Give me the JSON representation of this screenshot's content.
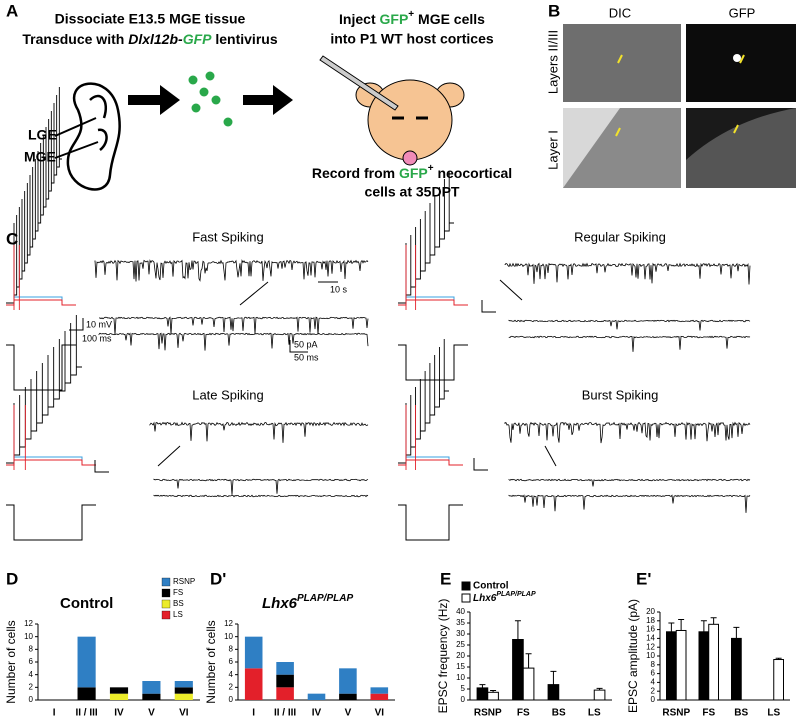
{
  "panel_a": {
    "label": "A",
    "line1": "Dissociate E13.5 MGE tissue",
    "line2": [
      "Transduce with",
      "Dlxl12b",
      "-",
      "GFP",
      "lentivirus"
    ],
    "lge": "LGE",
    "mge": "MGE",
    "inject": [
      "Inject",
      "GFP",
      "+",
      "MGE cells"
    ],
    "host": "into P1 WT host cortices",
    "record": [
      "Record from",
      "GFP",
      "+",
      "neocortical"
    ],
    "record2": "cells at 35DPT"
  },
  "panel_b": {
    "label": "B",
    "dic": "DIC",
    "gfp": "GFP",
    "row1": "Layers II/III",
    "row2": "Layer I"
  },
  "panel_c": {
    "label": "C",
    "fast": "Fast Spiking",
    "regular": "Regular Spiking",
    "late": "Late Spiking",
    "burst": "Burst Spiking",
    "scale_mv": "10 mV",
    "scale_ms": "100 ms",
    "scale_s": "10 s",
    "scale_pa": "50 pA",
    "scale_ms2": "50 ms"
  },
  "chart_data": [
    {
      "type": "stacked_bar",
      "panel": "D",
      "title": "Control",
      "ylabel": "Number of cells",
      "categories": [
        "I",
        "II / III",
        "IV",
        "V",
        "VI"
      ],
      "series": [
        {
          "name": "RSNP",
          "color": "#2f7fc4",
          "values": [
            0,
            8,
            0,
            2,
            1
          ]
        },
        {
          "name": "FS",
          "color": "#000000",
          "values": [
            0,
            2,
            1,
            1,
            1
          ]
        },
        {
          "name": "BS",
          "color": "#ecec2a",
          "values": [
            0,
            0,
            1,
            0,
            1
          ]
        },
        {
          "name": "LS",
          "color": "#e3202a",
          "values": [
            0,
            0,
            0,
            0,
            0
          ]
        }
      ],
      "ylim": [
        0,
        12
      ],
      "yticks": [
        0,
        2,
        4,
        6,
        8,
        10,
        12
      ],
      "legend": true
    },
    {
      "type": "stacked_bar",
      "panel": "D'",
      "title": {
        "text": "Lhx6",
        "superscript": "PLAP/PLAP"
      },
      "ylabel": "Number of cells",
      "categories": [
        "I",
        "II / III",
        "IV",
        "V",
        "VI"
      ],
      "series": [
        {
          "name": "RSNP",
          "color": "#2f7fc4",
          "values": [
            5,
            2,
            1,
            4,
            1
          ]
        },
        {
          "name": "FS",
          "color": "#000000",
          "values": [
            0,
            2,
            0,
            1,
            0
          ]
        },
        {
          "name": "BS",
          "color": "#ecec2a",
          "values": [
            0,
            0,
            0,
            0,
            0
          ]
        },
        {
          "name": "LS",
          "color": "#e3202a",
          "values": [
            5,
            2,
            0,
            0,
            1
          ]
        }
      ],
      "ylim": [
        0,
        12
      ],
      "yticks": [
        0,
        2,
        4,
        6,
        8,
        10,
        12
      ],
      "legend": false
    },
    {
      "type": "bar",
      "panel": "E",
      "ylabel": "EPSC frequency (Hz)",
      "categories": [
        "RSNP",
        "FS",
        "BS",
        "LS"
      ],
      "series": [
        {
          "name": "Control",
          "color": "#000000",
          "values": [
            5.5,
            27.5,
            7,
            null
          ],
          "errors": [
            1.5,
            8.5,
            6,
            null
          ]
        },
        {
          "name": {
            "text": "Lhx6",
            "superscript": "PLAP/PLAP"
          },
          "color": "#ffffff",
          "values": [
            3.5,
            14.5,
            null,
            4.5
          ],
          "errors": [
            0.8,
            6.5,
            null,
            0.8
          ]
        }
      ],
      "ylim": [
        0,
        40
      ],
      "yticks": [
        0,
        5,
        10,
        15,
        20,
        25,
        30,
        35,
        40
      ],
      "legend": true
    },
    {
      "type": "bar",
      "panel": "E'",
      "ylabel": "EPSC amplitude (pA)",
      "categories": [
        "RSNP",
        "FS",
        "BS",
        "LS"
      ],
      "series": [
        {
          "name": "Control",
          "color": "#000000",
          "values": [
            15.5,
            15.5,
            14,
            null
          ],
          "errors": [
            2,
            2.5,
            2.5,
            null
          ]
        },
        {
          "name": {
            "text": "Lhx6",
            "superscript": "PLAP/PLAP"
          },
          "color": "#ffffff",
          "values": [
            15.8,
            17.2,
            null,
            9.2
          ],
          "errors": [
            2.5,
            1.5,
            null,
            0.3
          ]
        }
      ],
      "ylim": [
        0,
        20
      ],
      "yticks": [
        0,
        2,
        4,
        6,
        8,
        10,
        12,
        14,
        16,
        18,
        20
      ],
      "legend": false
    }
  ]
}
